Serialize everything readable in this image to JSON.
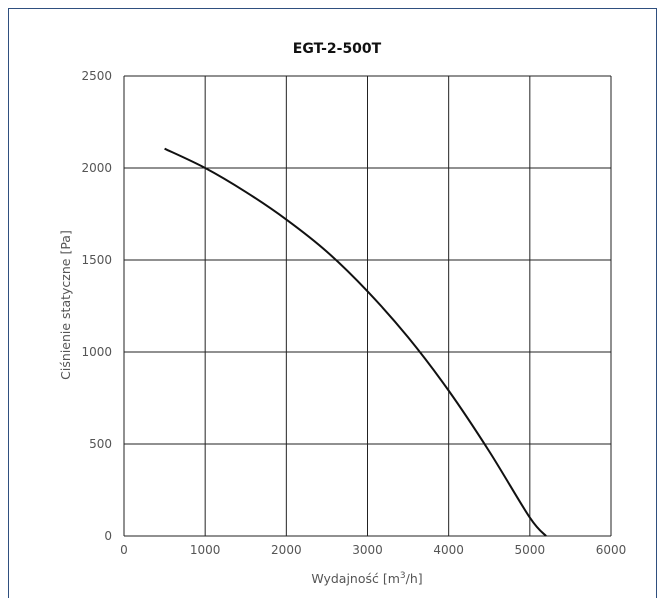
{
  "chart_data": {
    "type": "line",
    "title": "EGT-2-500T",
    "xlabel_main": "Wydajność [m",
    "xlabel_sup": "3",
    "xlabel_tail": "/h]",
    "ylabel": "Ciśnienie statyczne [Pa]",
    "xlim": [
      0,
      6000
    ],
    "ylim": [
      0,
      2500
    ],
    "x_ticks": [
      0,
      1000,
      2000,
      3000,
      4000,
      5000,
      6000
    ],
    "y_ticks": [
      0,
      500,
      1000,
      1500,
      2000,
      2500
    ],
    "x_tick_labels": [
      "0",
      "1000",
      "2000",
      "3000",
      "4000",
      "5000",
      "6000"
    ],
    "y_tick_labels": [
      "0",
      "500",
      "1000",
      "1500",
      "2000",
      "2500"
    ],
    "grid": true,
    "legend": "none",
    "colors": {
      "line": "#111111",
      "grid": "#222222",
      "frame": "#2f4f7f"
    },
    "series": [
      {
        "x": [
          500,
          1000,
          1500,
          2000,
          2500,
          3000,
          3500,
          4000,
          4500,
          5000,
          5200
        ],
        "y": [
          2105,
          2000,
          1870,
          1720,
          1545,
          1330,
          1080,
          790,
          460,
          100,
          0
        ]
      }
    ]
  }
}
